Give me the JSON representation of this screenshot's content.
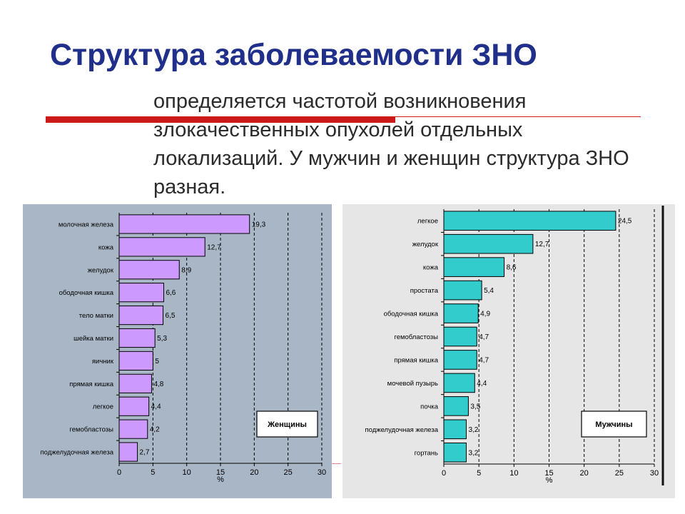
{
  "slide": {
    "title": "Структура заболеваемости ЗНО",
    "subtitle": "определяется частотой возникновения злокачественных опухолей отдельных локализаций. У мужчин и женщин структура ЗНО разная."
  },
  "colors": {
    "title": "#1f2f8a",
    "accent_red": "#cc1a1a",
    "women_panel_bg": "#a9b6c5",
    "women_bar": "#cc99ff",
    "men_panel_bg": "#e6e6e6",
    "men_bar": "#33cccc"
  },
  "chart_data": [
    {
      "type": "bar",
      "orientation": "horizontal",
      "legend_label": "Женщины",
      "categories": [
        "молочная железа",
        "кожа",
        "желудок",
        "ободочная кишка",
        "тело матки",
        "шейка матки",
        "яичник",
        "прямая кишка",
        "легкое",
        "гемобластозы",
        "поджелудочная железа"
      ],
      "values": [
        19.3,
        12.7,
        8.9,
        6.6,
        6.5,
        5.3,
        5,
        4.8,
        4.4,
        4.2,
        2.7
      ],
      "value_labels": [
        "19,3",
        "12,7",
        "8,9",
        "6,6",
        "6,5",
        "5,3",
        "5",
        "4,8",
        "4,4",
        "4,2",
        "2,7"
      ],
      "xlabel": "%",
      "xlim": [
        0,
        30
      ],
      "xticks": [
        0,
        5,
        10,
        15,
        20,
        25,
        30
      ],
      "grid": "vertical dashed"
    },
    {
      "type": "bar",
      "orientation": "horizontal",
      "legend_label": "Мужчины",
      "categories": [
        "легкое",
        "желудок",
        "кожа",
        "простата",
        "ободочная кишка",
        "гемобластозы",
        "прямая кишка",
        "мочевой пузырь",
        "почка",
        "поджелудочная железа",
        "гортань"
      ],
      "values": [
        24.5,
        12.7,
        8.6,
        5.4,
        4.9,
        4.7,
        4.7,
        4.4,
        3.5,
        3.2,
        3.2
      ],
      "value_labels": [
        "24,5",
        "12,7",
        "8,6",
        "5,4",
        "4,9",
        "4,7",
        "4,7",
        "4,4",
        "3,5",
        "3,2",
        "3,2"
      ],
      "xlabel": "%",
      "xlim": [
        0,
        30
      ],
      "xticks": [
        0,
        5,
        10,
        15,
        20,
        25,
        30
      ],
      "grid": "vertical dashed"
    }
  ]
}
